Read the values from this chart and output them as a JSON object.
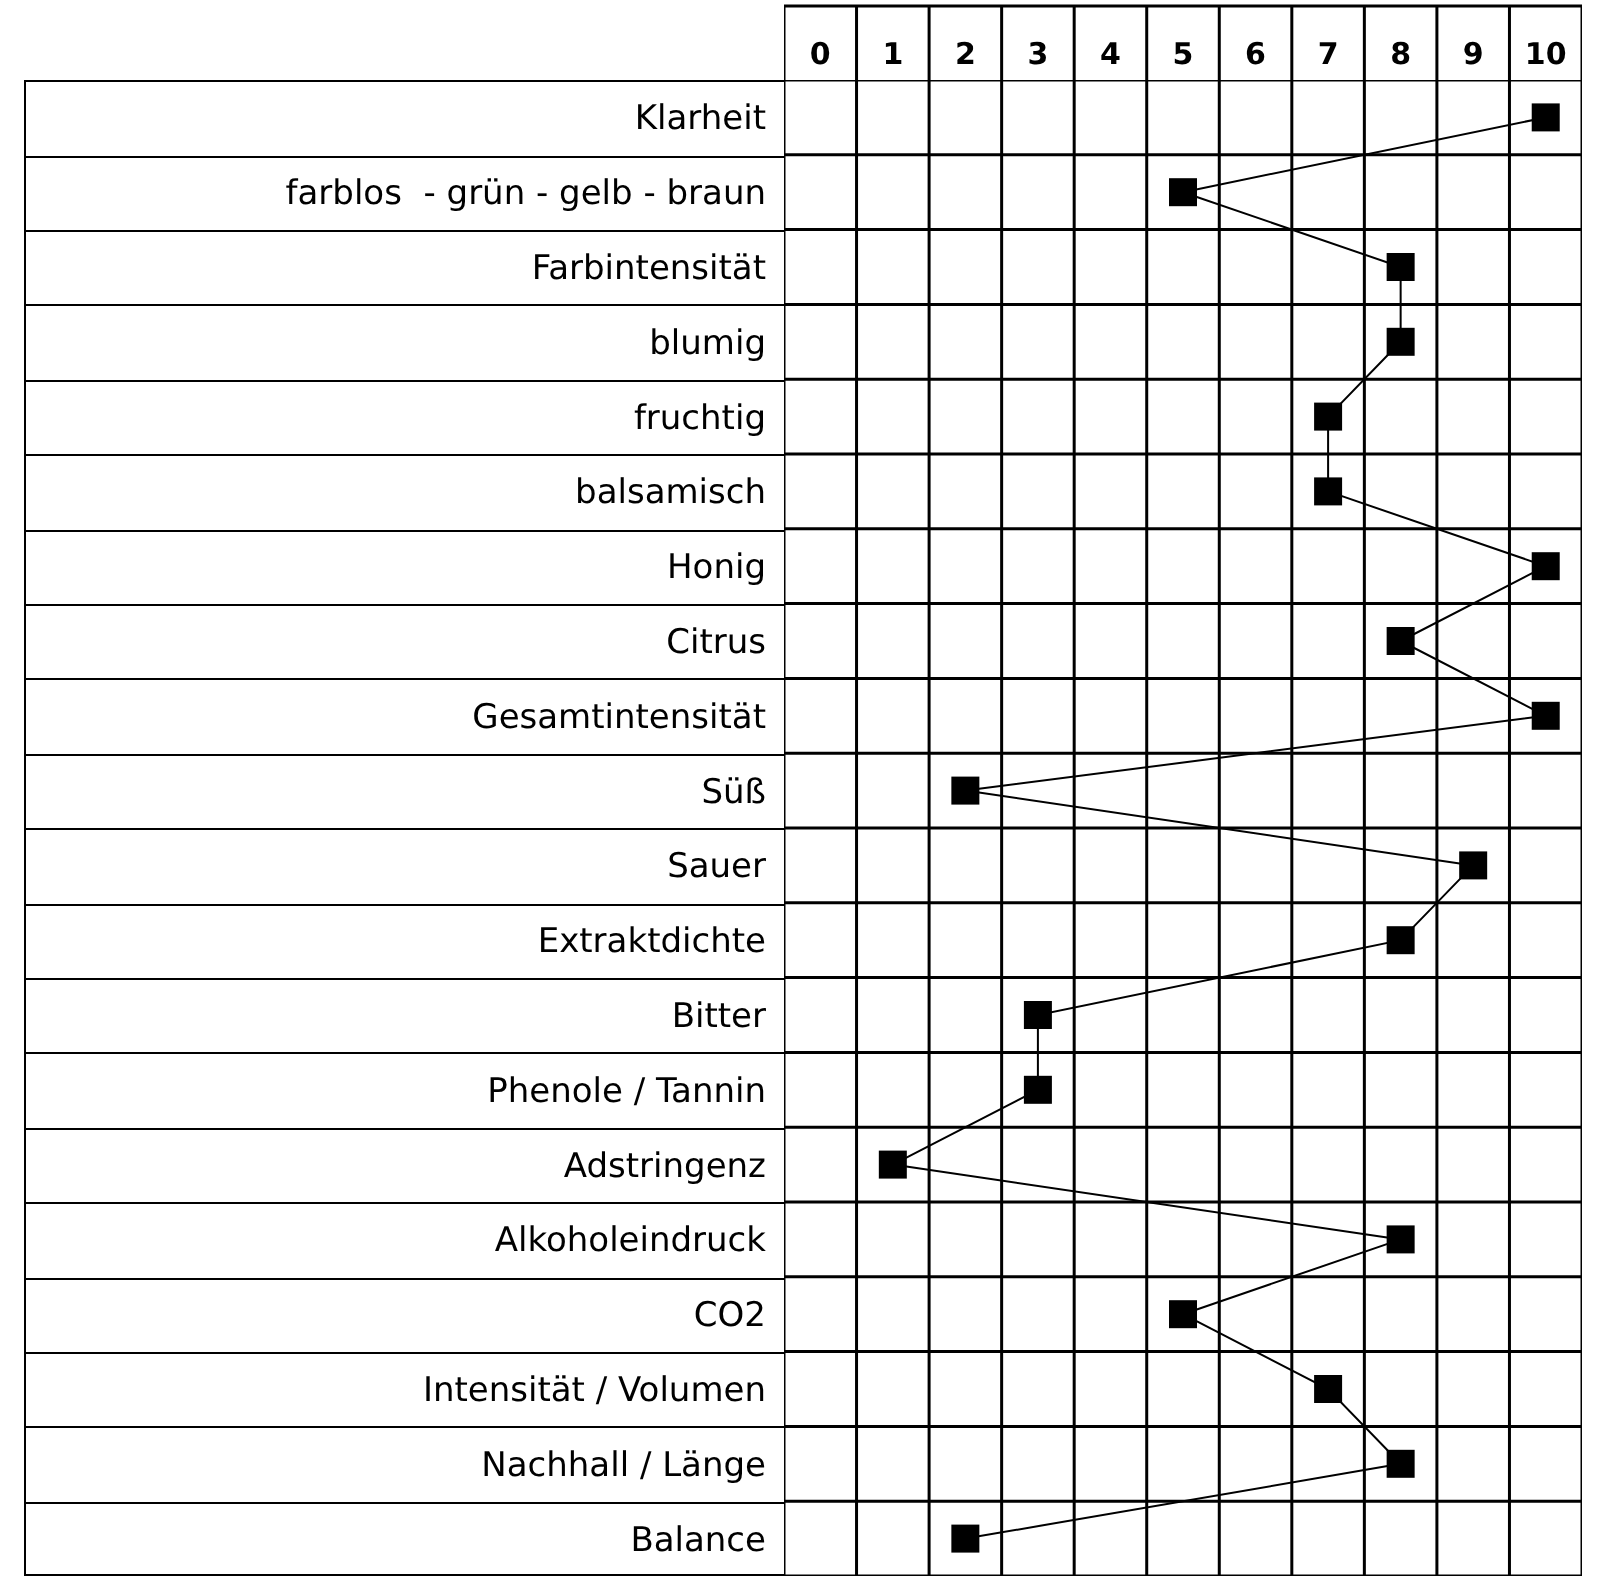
{
  "chart_data": {
    "type": "line",
    "orientation": "horizontal",
    "categories": [
      "Klarheit",
      "farblos  - grün - gelb - braun",
      "Farbintensität",
      "blumig",
      "fruchtig",
      "balsamisch",
      "Honig",
      "Citrus",
      "Gesamtintensität",
      "Süß",
      "Sauer",
      "Extraktdichte",
      "Bitter",
      "Phenole / Tannin",
      "Adstringenz",
      "Alkoholeindruck",
      "CO2",
      "Intensität / Volumen",
      "Nachhall / Länge",
      "Balance"
    ],
    "series": [
      {
        "color": "#000000",
        "values": [
          10,
          5,
          8,
          8,
          7,
          7,
          10,
          8,
          10,
          2,
          9,
          8,
          3,
          3,
          1,
          8,
          5,
          7,
          8,
          2
        ]
      }
    ],
    "xlim": [
      -0.5,
      10.5
    ],
    "xticks": [
      0,
      1,
      2,
      3,
      4,
      5,
      6,
      7,
      8,
      9,
      10
    ],
    "grid": true,
    "marker": "square",
    "line_style": "solid"
  }
}
